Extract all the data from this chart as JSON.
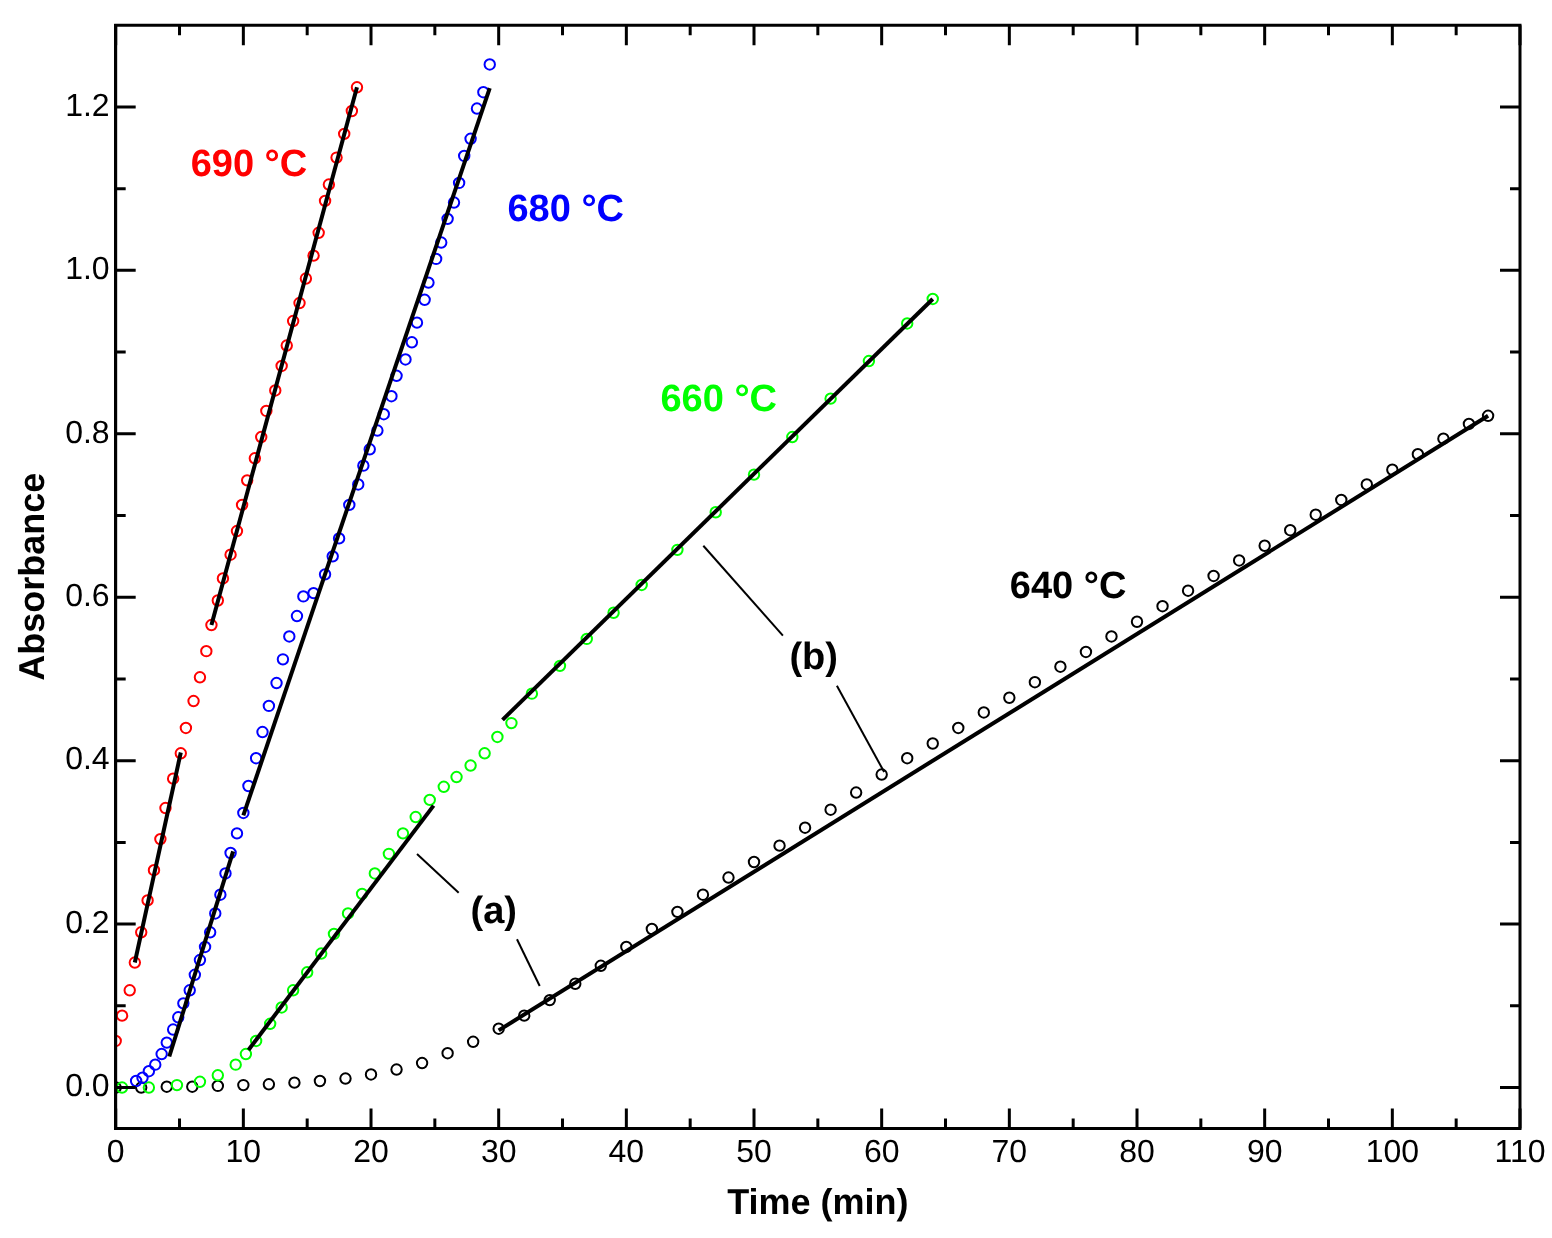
{
  "chart_data": {
    "type": "scatter",
    "xlabel": "Time (min)",
    "ylabel": "Absorbance",
    "xlim": [
      0,
      110
    ],
    "ylim": [
      -0.05,
      1.3
    ],
    "xticks": [
      0,
      {
        "value": 5,
        "label": null
      },
      10,
      {
        "value": 15,
        "label": null
      },
      20,
      {
        "value": 25,
        "label": null
      },
      30,
      {
        "value": 35,
        "label": null
      },
      40,
      {
        "value": 45,
        "label": null
      },
      50,
      {
        "value": 55,
        "label": null
      },
      60,
      {
        "value": 65,
        "label": null
      },
      70,
      {
        "value": 75,
        "label": null
      },
      80,
      {
        "value": 85,
        "label": null
      },
      90,
      {
        "value": 95,
        "label": null
      },
      100,
      {
        "value": 105,
        "label": null
      },
      110
    ],
    "yticks": [
      {
        "value": 0,
        "label": "0.0"
      },
      {
        "value": 0.1,
        "label": null
      },
      0.2,
      {
        "value": 0.3,
        "label": null
      },
      0.4,
      {
        "value": 0.5,
        "label": null
      },
      0.6,
      {
        "value": 0.7,
        "label": null
      },
      0.8,
      {
        "value": 0.9,
        "label": null
      },
      {
        "value": 1,
        "label": "1.0"
      },
      {
        "value": 1.1,
        "label": null
      },
      1.2
    ],
    "grid": false,
    "legend": false,
    "marker": "circle",
    "line_style": "solid",
    "series": [
      {
        "name": "690 °C",
        "color": "#ff0000",
        "x": [
          0,
          0.5,
          1.1,
          1.5,
          2,
          2.5,
          3,
          3.5,
          3.9,
          4.5,
          5.1,
          5.5,
          6.1,
          6.6,
          7.1,
          7.5,
          8,
          8.4,
          9,
          9.5,
          9.9,
          10.3,
          10.9,
          11.4,
          11.8,
          12.5,
          13,
          13.4,
          13.9,
          14.4,
          14.9,
          15.5,
          15.9,
          16.4,
          16.7,
          17.3,
          17.9,
          18.5,
          18.9
        ],
        "values": [
          0.057,
          0.088,
          0.119,
          0.153,
          0.19,
          0.229,
          0.266,
          0.304,
          0.342,
          0.378,
          0.409,
          0.44,
          0.473,
          0.502,
          0.534,
          0.566,
          0.596,
          0.623,
          0.652,
          0.681,
          0.713,
          0.743,
          0.77,
          0.796,
          0.828,
          0.853,
          0.883,
          0.908,
          0.938,
          0.96,
          0.99,
          1.018,
          1.046,
          1.085,
          1.105,
          1.138,
          1.167,
          1.195,
          1.224
        ]
      },
      {
        "name": "680 °C",
        "color": "#0000ff",
        "x": [
          1.6,
          2.1,
          2.6,
          3.1,
          3.6,
          4,
          4.5,
          4.9,
          5.3,
          5.8,
          6.2,
          6.6,
          7,
          7.4,
          7.8,
          8.2,
          8.6,
          9,
          9.5,
          10,
          10.4,
          11,
          11.5,
          12,
          12.6,
          13.1,
          13.6,
          14.2,
          14.7,
          15.5,
          16.4,
          17,
          17.5,
          18.3,
          19,
          19.4,
          19.9,
          20.5,
          21,
          21.6,
          22,
          22.7,
          23.2,
          23.6,
          24.2,
          24.5,
          25.1,
          25.5,
          26,
          26.5,
          26.9,
          27.3,
          27.8,
          28.3,
          28.8,
          29.3
        ],
        "values": [
          0.008,
          0.012,
          0.02,
          0.028,
          0.041,
          0.055,
          0.071,
          0.086,
          0.103,
          0.119,
          0.138,
          0.156,
          0.172,
          0.19,
          0.213,
          0.236,
          0.262,
          0.287,
          0.311,
          0.336,
          0.369,
          0.403,
          0.435,
          0.467,
          0.495,
          0.524,
          0.552,
          0.577,
          0.601,
          0.605,
          0.628,
          0.65,
          0.672,
          0.713,
          0.738,
          0.761,
          0.781,
          0.804,
          0.824,
          0.846,
          0.871,
          0.891,
          0.912,
          0.936,
          0.964,
          0.985,
          1.014,
          1.034,
          1.063,
          1.083,
          1.107,
          1.14,
          1.161,
          1.198,
          1.218,
          1.252
        ]
      },
      {
        "name": "660 °C",
        "color": "#00ff00",
        "x": [
          0.5,
          2.6,
          4.8,
          6.6,
          8,
          9.4,
          10.2,
          11,
          12.1,
          13,
          13.9,
          15,
          16.1,
          17.1,
          18.2,
          19.3,
          20.3,
          21.4,
          22.5,
          23.5,
          24.6,
          25.7,
          26.7,
          27.8,
          28.9,
          29.9,
          31,
          32.6,
          34.8,
          36.9,
          39,
          41.2,
          44,
          47,
          50,
          53,
          56,
          59,
          62,
          64
        ],
        "values": [
          0,
          0,
          0.003,
          0.007,
          0.015,
          0.028,
          0.041,
          0.057,
          0.078,
          0.098,
          0.119,
          0.141,
          0.164,
          0.188,
          0.213,
          0.237,
          0.262,
          0.286,
          0.311,
          0.331,
          0.352,
          0.368,
          0.38,
          0.394,
          0.409,
          0.429,
          0.446,
          0.482,
          0.516,
          0.549,
          0.581,
          0.615,
          0.658,
          0.704,
          0.75,
          0.796,
          0.843,
          0.889,
          0.935,
          0.965
        ]
      },
      {
        "name": "640 °C",
        "color": "#000000",
        "x": [
          0,
          2,
          4,
          6,
          8,
          10,
          12,
          14,
          16,
          18,
          20,
          22,
          24,
          26,
          28,
          30,
          32,
          34,
          36,
          38,
          40,
          42,
          44,
          46,
          48,
          50,
          52,
          54,
          56,
          58,
          60,
          62,
          64,
          66,
          68,
          70,
          72,
          74,
          76,
          78,
          80,
          82,
          84,
          86,
          88,
          90,
          92,
          94,
          96,
          98,
          100,
          102,
          104,
          106,
          107.5
        ],
        "values": [
          0,
          0,
          0.001,
          0.001,
          0.002,
          0.003,
          0.004,
          0.006,
          0.008,
          0.011,
          0.016,
          0.022,
          0.03,
          0.042,
          0.056,
          0.072,
          0.088,
          0.107,
          0.127,
          0.149,
          0.172,
          0.194,
          0.215,
          0.236,
          0.257,
          0.276,
          0.296,
          0.318,
          0.34,
          0.361,
          0.383,
          0.403,
          0.421,
          0.44,
          0.459,
          0.477,
          0.496,
          0.515,
          0.533,
          0.552,
          0.57,
          0.589,
          0.608,
          0.626,
          0.645,
          0.663,
          0.682,
          0.701,
          0.719,
          0.738,
          0.756,
          0.775,
          0.794,
          0.812,
          0.822
        ]
      },
      {
        "type": "line",
        "marker": "none",
        "color": "#000000",
        "x": [
          1.5,
          5.1
        ],
        "values": [
          0.153,
          0.41
        ]
      },
      {
        "type": "line",
        "marker": "none",
        "color": "#000000",
        "x": [
          7.5,
          18.9
        ],
        "values": [
          0.566,
          1.224
        ]
      },
      {
        "type": "line",
        "marker": "none",
        "color": "#000000",
        "x": [
          4.2,
          9.2
        ],
        "values": [
          0.038,
          0.289
        ]
      },
      {
        "type": "line",
        "marker": "none",
        "color": "#000000",
        "x": [
          10,
          29.3
        ],
        "values": [
          0.333,
          1.223
        ]
      },
      {
        "type": "line",
        "marker": "none",
        "color": "#000000",
        "x": [
          10.4,
          24.9
        ],
        "values": [
          0.046,
          0.345
        ]
      },
      {
        "type": "line",
        "marker": "none",
        "color": "#000000",
        "x": [
          30.3,
          64
        ],
        "values": [
          0.45,
          0.965
        ]
      },
      {
        "type": "line",
        "marker": "none",
        "color": "#000000",
        "x": [
          30,
          107.5
        ],
        "values": [
          0.07,
          0.822
        ]
      }
    ],
    "annotations": [
      {
        "text": "(a)",
        "x": 34,
        "y": 0.107
      },
      {
        "text": "(b)",
        "x": 60,
        "y": 0.383
      }
    ]
  }
}
